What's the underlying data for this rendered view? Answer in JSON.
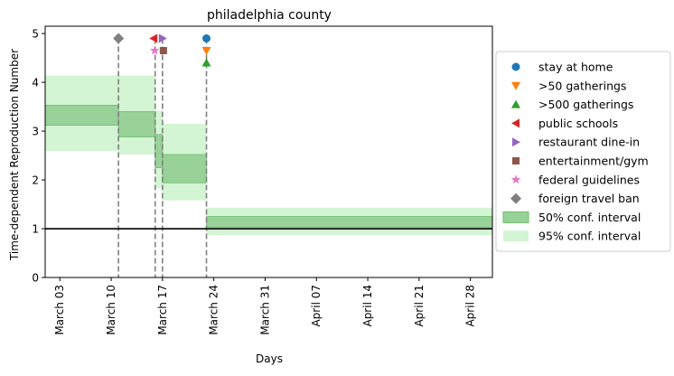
{
  "chart_data": {
    "type": "area",
    "title": "philadelphia county",
    "xlabel": "Days",
    "ylabel": "Time-dependent Reproduction Number",
    "date_ticks": [
      {
        "date": "2020-03-03",
        "label": "March 03"
      },
      {
        "date": "2020-03-10",
        "label": "March 10"
      },
      {
        "date": "2020-03-17",
        "label": "March 17"
      },
      {
        "date": "2020-03-24",
        "label": "March 24"
      },
      {
        "date": "2020-03-31",
        "label": "March 31"
      },
      {
        "date": "2020-04-07",
        "label": "April 07"
      },
      {
        "date": "2020-04-14",
        "label": "April 14"
      },
      {
        "date": "2020-04-21",
        "label": "April 21"
      },
      {
        "date": "2020-04-28",
        "label": "April 28"
      }
    ],
    "xlim": [
      "2020-03-01",
      "2020-05-01"
    ],
    "ylim": [
      0,
      5.15
    ],
    "yticks": [
      0,
      1,
      2,
      3,
      4,
      5
    ],
    "reference_line": 1,
    "grid": false,
    "legend_position": "right",
    "segments": [
      {
        "start": "2020-03-01",
        "end": "2020-03-11",
        "ci50": [
          3.12,
          3.53
        ],
        "ci95": [
          2.59,
          4.14
        ]
      },
      {
        "start": "2020-03-11",
        "end": "2020-03-16",
        "ci50": [
          2.88,
          3.4
        ],
        "ci95": [
          2.52,
          4.14
        ]
      },
      {
        "start": "2020-03-16",
        "end": "2020-03-17",
        "ci50": [
          2.25,
          2.93
        ],
        "ci95": [
          1.83,
          3.42
        ]
      },
      {
        "start": "2020-03-17",
        "end": "2020-03-23",
        "ci50": [
          1.94,
          2.52
        ],
        "ci95": [
          1.58,
          3.15
        ]
      },
      {
        "start": "2020-03-23",
        "end": "2020-05-01",
        "ci50": [
          1.03,
          1.25
        ],
        "ci95": [
          0.87,
          1.43
        ]
      }
    ],
    "interventions": [
      {
        "label": "stay at home",
        "date": "2020-03-23",
        "y": 4.9,
        "marker": "circle",
        "color": "#1f77b4"
      },
      {
        "label": ">50 gatherings",
        "date": "2020-03-23",
        "y": 4.65,
        "marker": "triangle-down",
        "color": "#ff7f0e"
      },
      {
        "label": ">500 gatherings",
        "date": "2020-03-23",
        "y": 4.4,
        "marker": "triangle-up",
        "color": "#2ca02c"
      },
      {
        "label": "public schools",
        "date": "2020-03-16",
        "y": 4.9,
        "marker": "triangle-left",
        "color": "#d62728"
      },
      {
        "label": "restaurant dine-in",
        "date": "2020-03-17",
        "y": 4.9,
        "marker": "triangle-right",
        "color": "#9467bd"
      },
      {
        "label": "entertainment/gym",
        "date": "2020-03-17",
        "y": 4.65,
        "marker": "square",
        "color": "#8c564b"
      },
      {
        "label": "federal guidelines",
        "date": "2020-03-16",
        "y": 4.65,
        "marker": "star",
        "color": "#e377c2"
      },
      {
        "label": "foreign travel ban",
        "date": "2020-03-11",
        "y": 4.9,
        "marker": "diamond",
        "color": "#7f7f7f"
      }
    ],
    "vlines": [
      "2020-03-11",
      "2020-03-16",
      "2020-03-17",
      "2020-03-23"
    ],
    "legend": {
      "ci50_label": "50% conf. interval",
      "ci95_label": "95% conf. interval"
    },
    "colors": {
      "ci50_fill": "#98d298",
      "ci50_edge": "#6cbf6c",
      "ci95_fill": "#d3f5d3",
      "vline": "#808080",
      "reference": "#000000"
    }
  }
}
